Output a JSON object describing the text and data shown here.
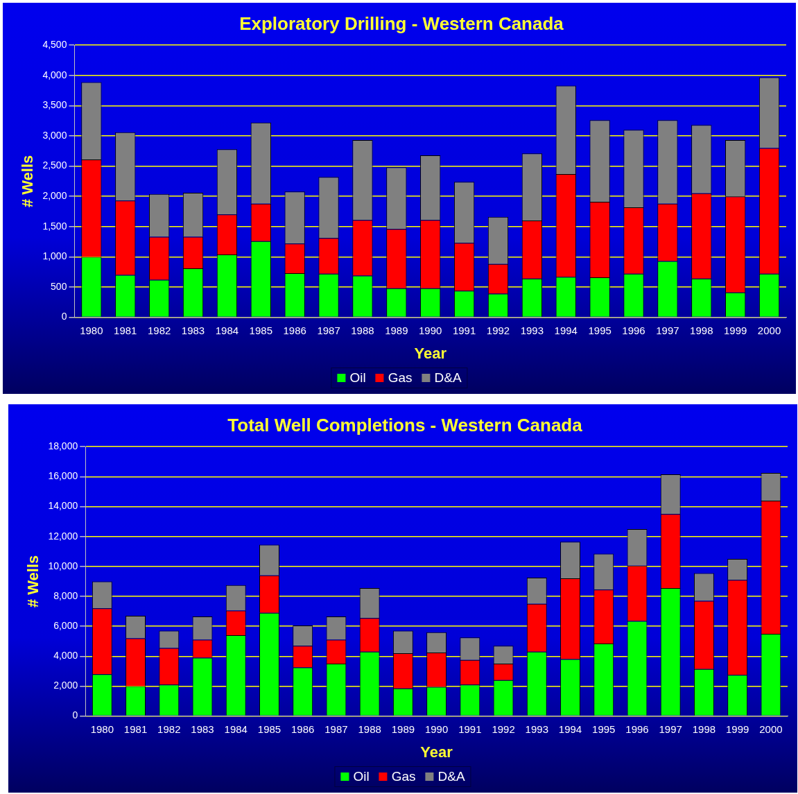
{
  "chart_data": [
    {
      "type": "bar",
      "stacked": true,
      "title": "Exploratory Drilling - Western Canada",
      "xlabel": "Year",
      "ylabel": "# Wells",
      "categories": [
        "1980",
        "1981",
        "1982",
        "1983",
        "1984",
        "1985",
        "1986",
        "1987",
        "1988",
        "1989",
        "1990",
        "1991",
        "1992",
        "1993",
        "1994",
        "1995",
        "1996",
        "1997",
        "1998",
        "1999",
        "2000"
      ],
      "series": [
        {
          "name": "Oil",
          "color": "#00ff00",
          "values": [
            1000,
            700,
            620,
            810,
            1040,
            1260,
            730,
            720,
            690,
            480,
            480,
            440,
            390,
            640,
            670,
            660,
            720,
            930,
            640,
            410,
            720
          ]
        },
        {
          "name": "Gas",
          "color": "#ff0000",
          "values": [
            1610,
            1230,
            710,
            520,
            660,
            620,
            490,
            590,
            920,
            980,
            1130,
            790,
            490,
            960,
            1700,
            1250,
            1100,
            950,
            1410,
            1590,
            2080
          ]
        },
        {
          "name": "D&A",
          "color": "#808080",
          "values": [
            1280,
            1130,
            710,
            730,
            1080,
            1340,
            860,
            1010,
            1320,
            1020,
            1070,
            1010,
            780,
            1110,
            1460,
            1350,
            1280,
            1380,
            1130,
            930,
            1170
          ]
        }
      ],
      "ylim": [
        0,
        4500
      ],
      "yticks": [
        {
          "value": 0,
          "label": "0"
        },
        {
          "value": 500,
          "label": "500"
        },
        {
          "value": 1000,
          "label": "1,000"
        },
        {
          "value": 1500,
          "label": "1,500"
        },
        {
          "value": 2000,
          "label": "2,000"
        },
        {
          "value": 2500,
          "label": "2,500"
        },
        {
          "value": 3000,
          "label": "3,000"
        },
        {
          "value": 3500,
          "label": "3,500"
        },
        {
          "value": 4000,
          "label": "4,000"
        },
        {
          "value": 4500,
          "label": "4,500"
        }
      ],
      "grid": "y",
      "legend": "bottom"
    },
    {
      "type": "bar",
      "stacked": true,
      "title": "Total Well Completions - Western Canada",
      "xlabel": "Year",
      "ylabel": "# Wells",
      "categories": [
        "1980",
        "1981",
        "1982",
        "1983",
        "1984",
        "1985",
        "1986",
        "1987",
        "1988",
        "1989",
        "1990",
        "1991",
        "1992",
        "1993",
        "1994",
        "1995",
        "1996",
        "1997",
        "1998",
        "1999",
        "2000"
      ],
      "series": [
        {
          "name": "Oil",
          "color": "#00ff00",
          "values": [
            2800,
            2000,
            2100,
            3900,
            5400,
            6900,
            3250,
            3500,
            4300,
            1850,
            1950,
            2100,
            2400,
            4300,
            3800,
            4850,
            6350,
            8550,
            3150,
            2750,
            5500
          ]
        },
        {
          "name": "Gas",
          "color": "#ff0000",
          "values": [
            4400,
            3200,
            2450,
            1200,
            1650,
            2500,
            1450,
            1600,
            2250,
            2350,
            2300,
            1650,
            1100,
            3200,
            5400,
            3600,
            3700,
            4950,
            4550,
            6350,
            8900
          ]
        },
        {
          "name": "D&A",
          "color": "#808080",
          "values": [
            1800,
            1500,
            1150,
            1550,
            1700,
            2050,
            1350,
            1550,
            2000,
            1500,
            1350,
            1500,
            1200,
            1750,
            2450,
            2400,
            2450,
            2650,
            1850,
            1400,
            1850
          ]
        }
      ],
      "ylim": [
        0,
        18000
      ],
      "yticks": [
        {
          "value": 0,
          "label": "0"
        },
        {
          "value": 2000,
          "label": "2,000"
        },
        {
          "value": 4000,
          "label": "4,000"
        },
        {
          "value": 6000,
          "label": "6,000"
        },
        {
          "value": 8000,
          "label": "8,000"
        },
        {
          "value": 10000,
          "label": "10,000"
        },
        {
          "value": 12000,
          "label": "12,000"
        },
        {
          "value": 14000,
          "label": "14,000"
        },
        {
          "value": 16000,
          "label": "16,000"
        },
        {
          "value": 18000,
          "label": "18,000"
        }
      ],
      "grid": "y",
      "legend": "bottom"
    }
  ]
}
